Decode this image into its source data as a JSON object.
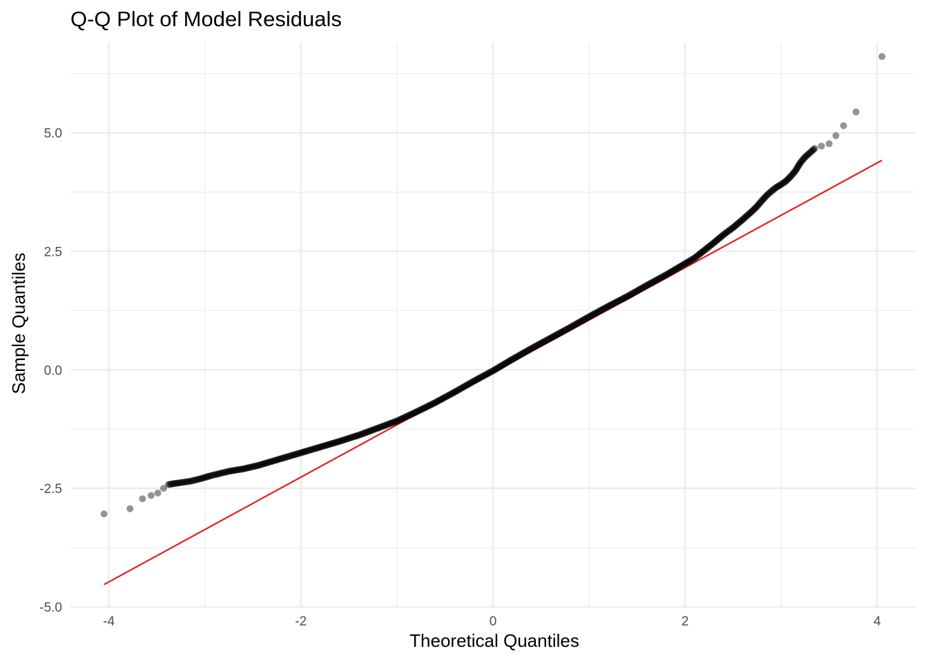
{
  "chart_data": {
    "type": "scatter",
    "title": "Q-Q Plot of Model Residuals",
    "xlabel": "Theoretical Quantiles",
    "ylabel": "Sample Quantiles",
    "xlim": [
      -4.4,
      4.4
    ],
    "ylim": [
      -5.0,
      6.9
    ],
    "x_ticks": [
      -4,
      -2,
      0,
      2,
      4
    ],
    "x_tick_labels": [
      "-4",
      "-2",
      "0",
      "2",
      "4"
    ],
    "y_ticks": [
      -5.0,
      -2.5,
      0.0,
      2.5,
      5.0
    ],
    "y_tick_labels": [
      "-5.0",
      "-2.5",
      "0.0",
      "2.5",
      "5.0"
    ],
    "grid": true,
    "legend": "none",
    "reference_line": {
      "color": "#e8191c",
      "x": [
        -4.05,
        4.05
      ],
      "y": [
        -4.53,
        4.42
      ]
    },
    "series": [
      {
        "color": "#000000",
        "x": [
          -4.05,
          -3.78,
          -3.65,
          -3.56,
          -3.49,
          -3.43,
          -3.38,
          -3.32,
          -3.25,
          -3.15,
          -3.05,
          -2.95,
          -2.85,
          -2.75,
          -2.6,
          -2.45,
          -2.3,
          -2.15,
          -2.0,
          -1.8,
          -1.6,
          -1.4,
          -1.2,
          -1.0,
          -0.8,
          -0.6,
          -0.4,
          -0.2,
          0.0,
          0.2,
          0.4,
          0.6,
          0.8,
          1.0,
          1.2,
          1.4,
          1.6,
          1.8,
          2.0,
          2.1,
          2.2,
          2.3,
          2.4,
          2.5,
          2.6,
          2.7,
          2.75,
          2.8,
          2.85,
          2.9,
          2.95,
          3.0,
          3.05,
          3.1,
          3.15,
          3.2,
          3.25,
          3.3,
          3.35,
          3.42,
          3.5,
          3.57,
          3.65,
          3.78,
          4.05
        ],
        "y": [
          -3.04,
          -2.93,
          -2.72,
          -2.65,
          -2.6,
          -2.5,
          -2.42,
          -2.4,
          -2.38,
          -2.35,
          -2.3,
          -2.24,
          -2.19,
          -2.14,
          -2.09,
          -2.02,
          -1.93,
          -1.84,
          -1.75,
          -1.63,
          -1.51,
          -1.38,
          -1.23,
          -1.08,
          -0.89,
          -0.69,
          -0.47,
          -0.24,
          -0.02,
          0.22,
          0.45,
          0.67,
          0.89,
          1.12,
          1.34,
          1.55,
          1.78,
          2.0,
          2.24,
          2.36,
          2.52,
          2.68,
          2.85,
          3.0,
          3.17,
          3.35,
          3.45,
          3.57,
          3.68,
          3.77,
          3.85,
          3.91,
          3.98,
          4.08,
          4.2,
          4.37,
          4.49,
          4.58,
          4.67,
          4.72,
          4.77,
          4.94,
          5.15,
          5.44,
          6.61
        ]
      }
    ]
  }
}
